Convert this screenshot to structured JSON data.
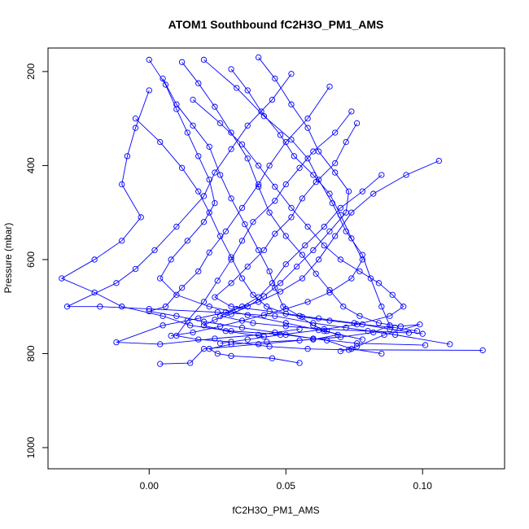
{
  "chart_data": {
    "type": "line",
    "title": "ATOM1 Southbound fC2H3O_PM1_AMS",
    "xlabel": "fC2H3O_PM1_AMS",
    "ylabel": "Pressure (mbar)",
    "xlim": [
      -0.037,
      0.13
    ],
    "ylim": [
      1045,
      150
    ],
    "y_reversed": true,
    "x_ticks": [
      0.0,
      0.05,
      0.1
    ],
    "x_tick_labels": [
      "0.00",
      "0.05",
      "0.10"
    ],
    "y_ticks": [
      200,
      400,
      600,
      800,
      1000
    ],
    "y_tick_labels": [
      "200",
      "400",
      "600",
      "800",
      "1000"
    ],
    "grid": false,
    "legend": "none",
    "colors": {
      "series": "#0000ff",
      "axis": "#000000"
    },
    "marker": "open-circle",
    "series": [
      {
        "values": [
          [
            0.005,
            215
          ],
          [
            0.01,
            270
          ],
          [
            0.016,
            315
          ],
          [
            0.022,
            360
          ],
          [
            0.026,
            420
          ],
          [
            0.03,
            470
          ],
          [
            0.035,
            525
          ],
          [
            0.04,
            580
          ],
          [
            0.044,
            625
          ],
          [
            0.046,
            660
          ],
          [
            0.049,
            700
          ],
          [
            0.055,
            720
          ],
          [
            0.06,
            740
          ],
          [
            0.065,
            752
          ],
          [
            0.069,
            760
          ],
          [
            0.06,
            770
          ],
          [
            0.043,
            775
          ],
          [
            0.03,
            780
          ],
          [
            0.022,
            790
          ],
          [
            0.025,
            800
          ],
          [
            0.03,
            805
          ],
          [
            0.045,
            810
          ],
          [
            0.055,
            820
          ]
        ]
      },
      {
        "values": [
          [
            0.02,
            175
          ],
          [
            0.032,
            235
          ],
          [
            0.042,
            295
          ],
          [
            0.052,
            345
          ],
          [
            0.058,
            385
          ],
          [
            0.062,
            430
          ],
          [
            0.067,
            480
          ],
          [
            0.072,
            540
          ],
          [
            0.078,
            590
          ],
          [
            0.081,
            640
          ],
          [
            0.085,
            700
          ],
          [
            0.088,
            740
          ],
          [
            0.082,
            755
          ],
          [
            0.07,
            765
          ],
          [
            0.055,
            772
          ],
          [
            0.04,
            780
          ],
          [
            0.02,
            790
          ],
          [
            0.015,
            820
          ],
          [
            0.004,
            822
          ]
        ]
      },
      {
        "values": [
          [
            0.0,
            240
          ],
          [
            -0.005,
            320
          ],
          [
            -0.008,
            380
          ],
          [
            -0.01,
            440
          ],
          [
            -0.003,
            510
          ],
          [
            -0.01,
            560
          ],
          [
            -0.02,
            600
          ],
          [
            -0.032,
            640
          ],
          [
            -0.02,
            670
          ],
          [
            -0.01,
            700
          ],
          [
            0.005,
            720
          ],
          [
            0.015,
            740
          ],
          [
            0.03,
            752
          ],
          [
            0.05,
            760
          ],
          [
            0.065,
            772
          ],
          [
            0.074,
            790
          ],
          [
            0.085,
            800
          ]
        ]
      },
      {
        "values": [
          [
            0.052,
            205
          ],
          [
            0.045,
            260
          ],
          [
            0.036,
            315
          ],
          [
            0.03,
            365
          ],
          [
            0.024,
            415
          ],
          [
            0.02,
            465
          ],
          [
            0.01,
            530
          ],
          [
            0.002,
            580
          ],
          [
            -0.005,
            620
          ],
          [
            -0.012,
            650
          ],
          [
            -0.03,
            700
          ],
          [
            -0.018,
            700
          ],
          [
            0.0,
            705
          ],
          [
            0.025,
            712
          ],
          [
            0.046,
            720
          ],
          [
            0.06,
            735
          ],
          [
            0.072,
            745
          ],
          [
            0.09,
            760
          ],
          [
            0.11,
            780
          ]
        ]
      },
      {
        "values": [
          [
            0.074,
            285
          ],
          [
            0.068,
            330
          ],
          [
            0.06,
            370
          ],
          [
            0.055,
            405
          ],
          [
            0.05,
            440
          ],
          [
            0.046,
            475
          ],
          [
            0.038,
            520
          ],
          [
            0.034,
            560
          ],
          [
            0.03,
            600
          ],
          [
            0.025,
            645
          ],
          [
            0.02,
            690
          ],
          [
            0.014,
            730
          ],
          [
            0.01,
            762
          ],
          [
            0.018,
            770
          ],
          [
            0.03,
            775
          ],
          [
            0.044,
            785
          ],
          [
            0.058,
            790
          ],
          [
            0.073,
            792
          ],
          [
            0.122,
            793
          ]
        ]
      },
      {
        "values": [
          [
            0.085,
            420
          ],
          [
            0.078,
            455
          ],
          [
            0.07,
            490
          ],
          [
            0.064,
            530
          ],
          [
            0.057,
            570
          ],
          [
            0.05,
            610
          ],
          [
            0.045,
            650
          ],
          [
            0.04,
            680
          ],
          [
            0.034,
            700
          ],
          [
            0.028,
            712
          ],
          [
            0.018,
            725
          ],
          [
            0.005,
            740
          ],
          [
            -0.012,
            776
          ],
          [
            0.004,
            780
          ],
          [
            0.024,
            768
          ],
          [
            0.04,
            760
          ],
          [
            0.055,
            748
          ]
        ]
      },
      {
        "values": [
          [
            0.106,
            390
          ],
          [
            0.094,
            420
          ],
          [
            0.082,
            460
          ],
          [
            0.074,
            500
          ],
          [
            0.068,
            550
          ],
          [
            0.062,
            600
          ],
          [
            0.056,
            640
          ],
          [
            0.048,
            668
          ],
          [
            0.04,
            690
          ],
          [
            0.032,
            705
          ],
          [
            0.026,
            720
          ],
          [
            0.038,
            735
          ],
          [
            0.05,
            742
          ],
          [
            0.064,
            748
          ],
          [
            0.08,
            752
          ],
          [
            0.095,
            756
          ]
        ]
      },
      {
        "values": [
          [
            0.012,
            180
          ],
          [
            0.018,
            225
          ],
          [
            0.024,
            275
          ],
          [
            0.03,
            330
          ],
          [
            0.036,
            385
          ],
          [
            0.04,
            445
          ],
          [
            0.044,
            500
          ],
          [
            0.05,
            550
          ],
          [
            0.056,
            590
          ],
          [
            0.061,
            630
          ],
          [
            0.066,
            665
          ],
          [
            0.071,
            700
          ],
          [
            0.077,
            720
          ],
          [
            0.084,
            735
          ],
          [
            0.092,
            742
          ],
          [
            0.099,
            738
          ],
          [
            0.086,
            760
          ],
          [
            0.076,
            785
          ],
          [
            0.07,
            795
          ]
        ]
      },
      {
        "values": [
          [
            0.066,
            232
          ],
          [
            0.058,
            300
          ],
          [
            0.05,
            350
          ],
          [
            0.044,
            400
          ],
          [
            0.04,
            440
          ],
          [
            0.034,
            490
          ],
          [
            0.028,
            540
          ],
          [
            0.022,
            585
          ],
          [
            0.018,
            625
          ],
          [
            0.012,
            660
          ],
          [
            0.006,
            700
          ],
          [
            0.0,
            710
          ],
          [
            0.01,
            720
          ],
          [
            0.02,
            732
          ],
          [
            0.034,
            745
          ],
          [
            0.046,
            755
          ],
          [
            0.06,
            768
          ],
          [
            0.076,
            778
          ],
          [
            0.101,
            782
          ]
        ]
      },
      {
        "values": [
          [
            0.03,
            195
          ],
          [
            0.036,
            240
          ],
          [
            0.041,
            285
          ],
          [
            0.048,
            335
          ],
          [
            0.053,
            380
          ],
          [
            0.06,
            420
          ],
          [
            0.066,
            460
          ],
          [
            0.07,
            505
          ],
          [
            0.074,
            555
          ],
          [
            0.078,
            600
          ],
          [
            0.074,
            640
          ],
          [
            0.066,
            670
          ],
          [
            0.058,
            690
          ],
          [
            0.05,
            705
          ],
          [
            0.042,
            718
          ],
          [
            0.034,
            730
          ],
          [
            0.026,
            742
          ],
          [
            0.016,
            755
          ],
          [
            0.008,
            762
          ]
        ]
      },
      {
        "values": [
          [
            0.076,
            310
          ],
          [
            0.072,
            350
          ],
          [
            0.068,
            395
          ],
          [
            0.061,
            435
          ],
          [
            0.056,
            470
          ],
          [
            0.052,
            510
          ],
          [
            0.046,
            545
          ],
          [
            0.042,
            580
          ],
          [
            0.036,
            615
          ],
          [
            0.03,
            650
          ],
          [
            0.024,
            680
          ],
          [
            0.03,
            700
          ],
          [
            0.044,
            710
          ],
          [
            0.056,
            722
          ],
          [
            0.066,
            730
          ],
          [
            0.078,
            738
          ],
          [
            0.09,
            745
          ],
          [
            0.098,
            752
          ]
        ]
      },
      {
        "values": [
          [
            -0.005,
            300
          ],
          [
            0.004,
            350
          ],
          [
            0.012,
            405
          ],
          [
            0.018,
            455
          ],
          [
            0.022,
            500
          ],
          [
            0.026,
            550
          ],
          [
            0.03,
            595
          ],
          [
            0.034,
            640
          ],
          [
            0.038,
            675
          ],
          [
            0.043,
            700
          ],
          [
            0.05,
            715
          ],
          [
            0.062,
            725
          ],
          [
            0.075,
            735
          ],
          [
            0.088,
            748
          ],
          [
            0.1,
            758
          ]
        ]
      },
      {
        "values": [
          [
            0.016,
            260
          ],
          [
            0.026,
            310
          ],
          [
            0.034,
            355
          ],
          [
            0.04,
            400
          ],
          [
            0.046,
            445
          ],
          [
            0.052,
            490
          ],
          [
            0.058,
            530
          ],
          [
            0.064,
            570
          ],
          [
            0.07,
            600
          ],
          [
            0.077,
            625
          ],
          [
            0.084,
            650
          ],
          [
            0.089,
            675
          ],
          [
            0.093,
            700
          ],
          [
            0.088,
            720
          ],
          [
            0.076,
            738
          ],
          [
            0.062,
            750
          ],
          [
            0.048,
            760
          ],
          [
            0.036,
            770
          ],
          [
            0.026,
            778
          ]
        ]
      },
      {
        "values": [
          [
            0.04,
            170
          ],
          [
            0.046,
            215
          ],
          [
            0.052,
            270
          ],
          [
            0.058,
            320
          ],
          [
            0.062,
            370
          ],
          [
            0.068,
            415
          ],
          [
            0.073,
            455
          ],
          [
            0.072,
            500
          ],
          [
            0.066,
            540
          ],
          [
            0.06,
            580
          ],
          [
            0.054,
            615
          ],
          [
            0.048,
            650
          ],
          [
            0.042,
            678
          ],
          [
            0.036,
            700
          ],
          [
            0.03,
            716
          ],
          [
            0.024,
            728
          ],
          [
            0.02,
            740
          ],
          [
            0.028,
            752
          ],
          [
            0.042,
            764
          ]
        ]
      },
      {
        "values": [
          [
            0.0,
            175
          ],
          [
            0.006,
            228
          ],
          [
            0.01,
            280
          ],
          [
            0.014,
            330
          ],
          [
            0.018,
            380
          ],
          [
            0.022,
            430
          ],
          [
            0.024,
            480
          ],
          [
            0.02,
            520
          ],
          [
            0.014,
            560
          ],
          [
            0.008,
            600
          ],
          [
            0.004,
            640
          ],
          [
            0.01,
            675
          ],
          [
            0.022,
            700
          ],
          [
            0.036,
            718
          ],
          [
            0.05,
            735
          ],
          [
            0.064,
            752
          ],
          [
            0.078,
            770
          ]
        ]
      }
    ]
  }
}
